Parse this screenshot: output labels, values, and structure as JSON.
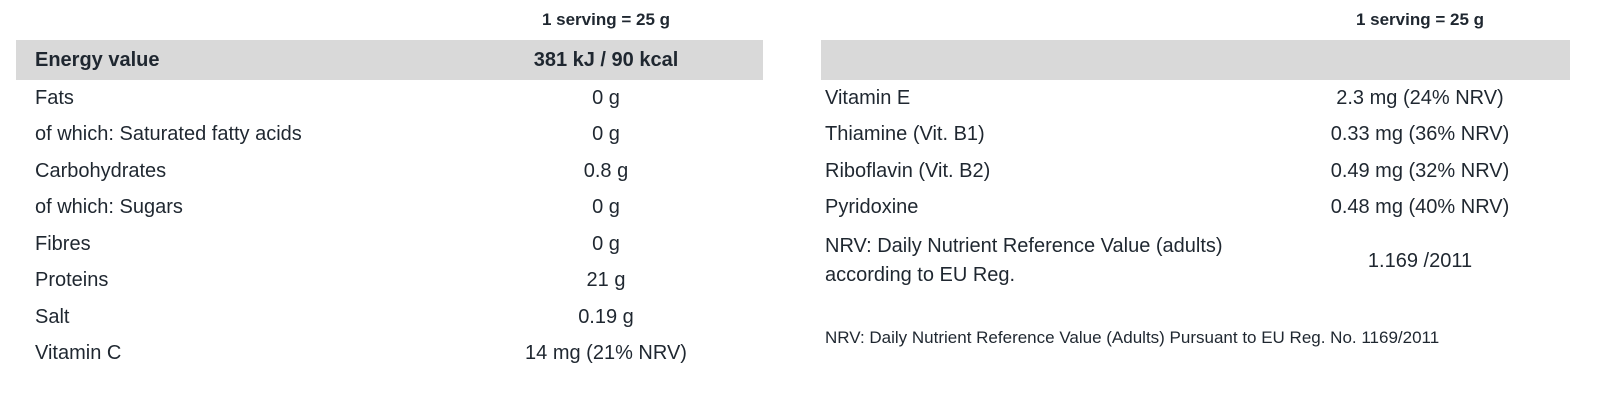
{
  "colors": {
    "header_row_bg": "#d9d9d9",
    "text": "#1f2730",
    "page_bg": "#ffffff"
  },
  "left_table": {
    "serving_header": "1 serving = 25 g",
    "header_row": {
      "label": "Energy value",
      "value": "381 kJ / 90 kcal"
    },
    "rows": [
      {
        "label": "Fats",
        "value": "0 g"
      },
      {
        "label": "of which: Saturated fatty acids",
        "value": "0 g"
      },
      {
        "label": "Carbohydrates",
        "value": "0.8 g"
      },
      {
        "label": "of which: Sugars",
        "value": "0 g"
      },
      {
        "label": "Fibres",
        "value": "0 g"
      },
      {
        "label": "Proteins",
        "value": "21 g"
      },
      {
        "label": "Salt",
        "value": "0.19 g"
      },
      {
        "label": "Vitamin C",
        "value": "14 mg (21% NRV)"
      }
    ]
  },
  "right_table": {
    "serving_header": "1 serving = 25 g",
    "header_row": {
      "label": "",
      "value": ""
    },
    "rows": [
      {
        "label": "Vitamin E",
        "value": "2.3 mg (24% NRV)"
      },
      {
        "label": "Thiamine (Vit. B1)",
        "value": "0.33 mg (36% NRV)"
      },
      {
        "label": "Riboflavin (Vit. B2)",
        "value": "0.49 mg (32% NRV)"
      },
      {
        "label": "Pyridoxine",
        "value": "0.48 mg (40% NRV)"
      }
    ],
    "nrv_row": {
      "label": "NRV: Daily Nutrient Reference Value (adults) according to EU Reg.",
      "value": "1.169 /2011"
    },
    "footnote": "NRV: Daily Nutrient Reference Value (Adults) Pursuant to EU Reg. No. 1169/2011"
  }
}
